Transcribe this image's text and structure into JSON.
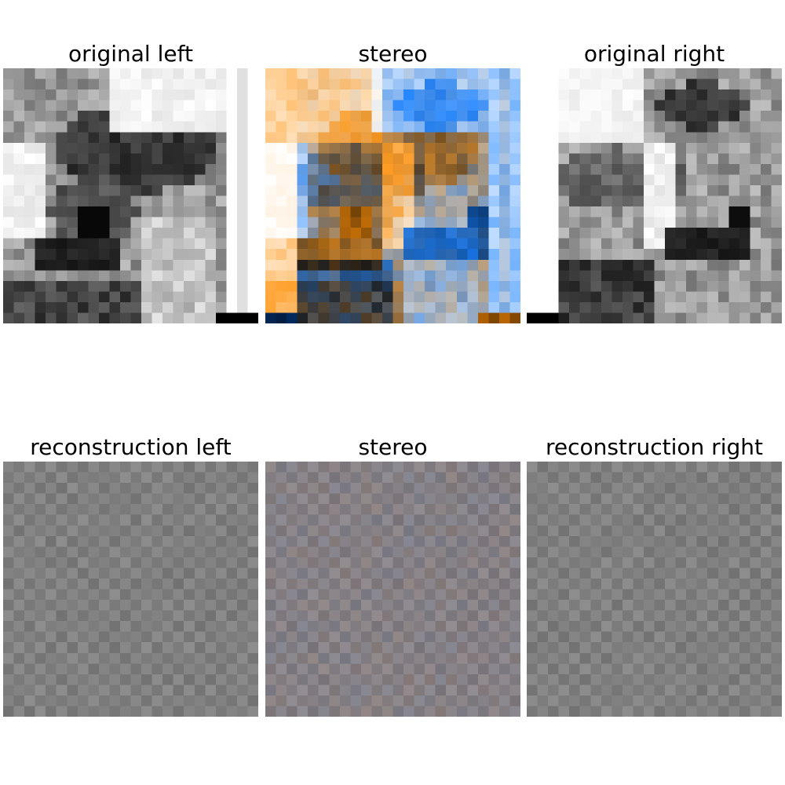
{
  "figure": {
    "top_row": {
      "left_title": "original left",
      "middle_title": "stereo",
      "right_title": "original right"
    },
    "bottom_row": {
      "left_title": "reconstruction left",
      "middle_title": "stereo",
      "right_title": "reconstruction right"
    }
  },
  "colors": {
    "background": "#ffffff",
    "stereo_left_tint": "#1e88ff",
    "stereo_right_tint": "#ff8c1e",
    "reconstruction_gray": "#808080"
  }
}
